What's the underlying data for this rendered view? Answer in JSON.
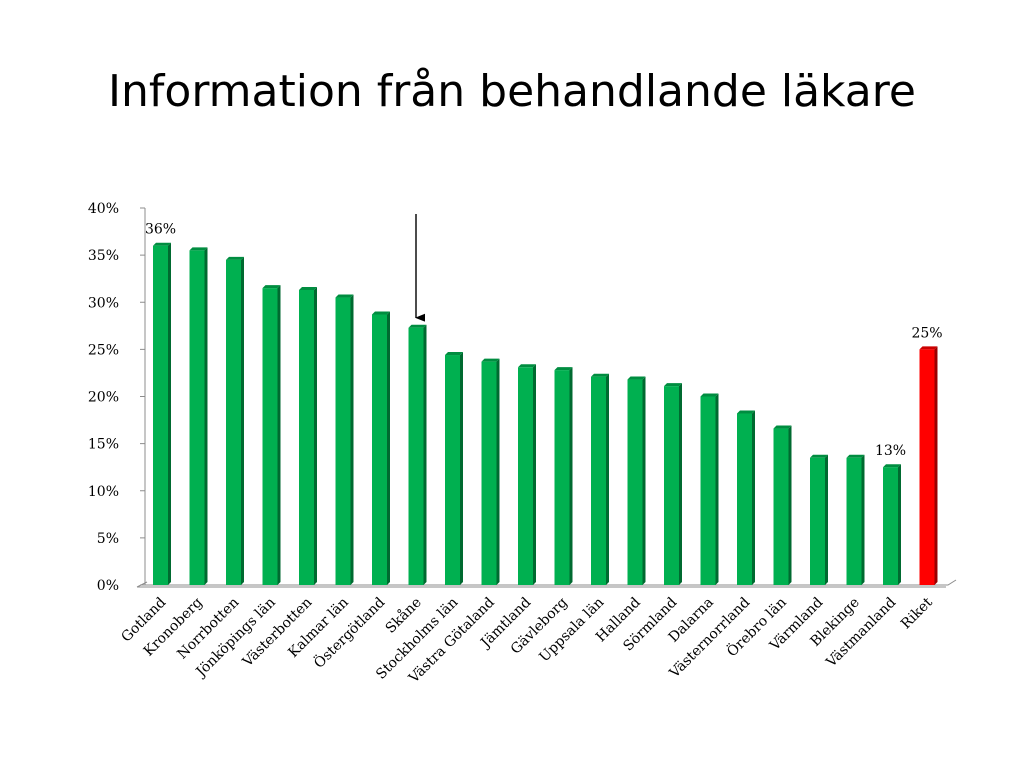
{
  "slide": {
    "title": "Information från behandlande läkare"
  },
  "chart_data": {
    "type": "bar",
    "title": "",
    "xlabel": "",
    "ylabel": "",
    "ylim": [
      0,
      0.4
    ],
    "y_tick_labels": [
      "0%",
      "5%",
      "10%",
      "15%",
      "20%",
      "25%",
      "30%",
      "35%",
      "40%"
    ],
    "categories": [
      "Gotland",
      "Kronoberg",
      "Norrbotten",
      "Jönköpings län",
      "Västerbotten",
      "Kalmar län",
      "Östergötland",
      "Skåne",
      "Stockholms län",
      "Västra Götaland",
      "Jämtland",
      "Gävleborg",
      "Uppsala län",
      "Halland",
      "Sörmland",
      "Dalarna",
      "Västernorrland",
      "Örebro län",
      "Värmland",
      "Blekinge",
      "Västmanland",
      "Riket"
    ],
    "values": [
      0.36,
      0.355,
      0.345,
      0.315,
      0.313,
      0.305,
      0.287,
      0.273,
      0.244,
      0.237,
      0.231,
      0.228,
      0.221,
      0.218,
      0.211,
      0.2,
      0.182,
      0.166,
      0.135,
      0.135,
      0.125,
      0.25
    ],
    "bar_colors": [
      "#00b050",
      "#00b050",
      "#00b050",
      "#00b050",
      "#00b050",
      "#00b050",
      "#00b050",
      "#00b050",
      "#00b050",
      "#00b050",
      "#00b050",
      "#00b050",
      "#00b050",
      "#00b050",
      "#00b050",
      "#00b050",
      "#00b050",
      "#00b050",
      "#00b050",
      "#00b050",
      "#00b050",
      "#ff0000"
    ],
    "data_labels": [
      {
        "category": "Gotland",
        "text": "36%"
      },
      {
        "category": "Västmanland",
        "text": "13%"
      },
      {
        "category": "Riket",
        "text": "25%"
      }
    ],
    "annotations": [
      {
        "type": "arrow",
        "points_to": "Skåne"
      }
    ],
    "grid": false,
    "legend": "none"
  }
}
